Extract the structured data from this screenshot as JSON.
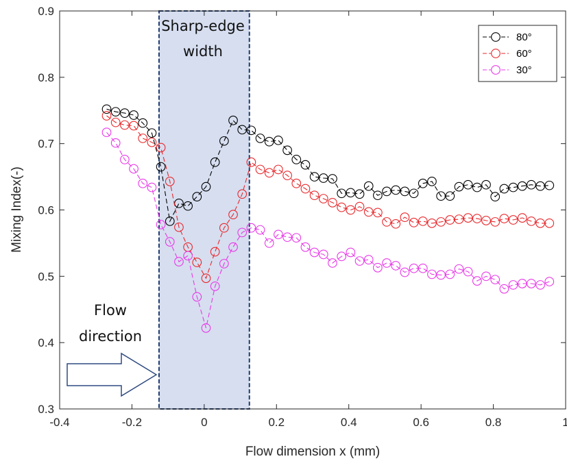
{
  "chart_data": {
    "type": "line",
    "title": "",
    "xlabel": "Flow dimension x (mm)",
    "ylabel": "Mixing Index(-)",
    "xlim": [
      -0.4,
      1
    ],
    "ylim": [
      0.3,
      0.9
    ],
    "xticks": [
      "-0.4",
      "-0.2",
      "0",
      "0.2",
      "0.4",
      "0.6",
      "0.8",
      "1"
    ],
    "yticks": [
      "0.3",
      "0.4",
      "0.5",
      "0.6",
      "0.7",
      "0.8",
      "0.9"
    ],
    "grid": false,
    "legend_position": "top-right",
    "series": [
      {
        "name": "80°",
        "color": "#000000",
        "marker": "circle",
        "line_style": "dashed",
        "x": [
          -0.27,
          -0.245,
          -0.22,
          -0.195,
          -0.17,
          -0.145,
          -0.12,
          -0.095,
          -0.07,
          -0.045,
          -0.02,
          0.005,
          0.03,
          0.055,
          0.08,
          0.105,
          0.13,
          0.155,
          0.18,
          0.205,
          0.23,
          0.255,
          0.28,
          0.305,
          0.33,
          0.355,
          0.38,
          0.405,
          0.43,
          0.455,
          0.48,
          0.505,
          0.53,
          0.555,
          0.58,
          0.605,
          0.63,
          0.655,
          0.68,
          0.705,
          0.73,
          0.755,
          0.78,
          0.805,
          0.83,
          0.855,
          0.88,
          0.905,
          0.93,
          0.955
        ],
        "y": [
          0.752,
          0.748,
          0.746,
          0.743,
          0.731,
          0.716,
          0.665,
          0.583,
          0.61,
          0.606,
          0.62,
          0.635,
          0.672,
          0.704,
          0.735,
          0.721,
          0.72,
          0.708,
          0.703,
          0.705,
          0.69,
          0.676,
          0.668,
          0.65,
          0.648,
          0.647,
          0.625,
          0.626,
          0.624,
          0.636,
          0.622,
          0.628,
          0.63,
          0.628,
          0.625,
          0.64,
          0.643,
          0.621,
          0.621,
          0.635,
          0.638,
          0.634,
          0.638,
          0.62,
          0.632,
          0.634,
          0.636,
          0.638,
          0.636,
          0.637
        ]
      },
      {
        "name": "60°",
        "color": "#e8272b",
        "marker": "circle",
        "line_style": "dashed",
        "x": [
          -0.27,
          -0.245,
          -0.22,
          -0.195,
          -0.17,
          -0.145,
          -0.12,
          -0.095,
          -0.07,
          -0.045,
          -0.02,
          0.005,
          0.03,
          0.055,
          0.08,
          0.105,
          0.13,
          0.155,
          0.18,
          0.205,
          0.23,
          0.255,
          0.28,
          0.305,
          0.33,
          0.355,
          0.38,
          0.405,
          0.43,
          0.455,
          0.48,
          0.505,
          0.53,
          0.555,
          0.58,
          0.605,
          0.63,
          0.655,
          0.68,
          0.705,
          0.73,
          0.755,
          0.78,
          0.805,
          0.83,
          0.855,
          0.88,
          0.905,
          0.93,
          0.955
        ],
        "y": [
          0.742,
          0.732,
          0.728,
          0.727,
          0.708,
          0.702,
          0.694,
          0.643,
          0.574,
          0.544,
          0.521,
          0.497,
          0.537,
          0.573,
          0.593,
          0.624,
          0.672,
          0.661,
          0.656,
          0.661,
          0.652,
          0.64,
          0.632,
          0.622,
          0.617,
          0.611,
          0.604,
          0.6,
          0.605,
          0.597,
          0.596,
          0.582,
          0.579,
          0.589,
          0.581,
          0.583,
          0.58,
          0.582,
          0.585,
          0.586,
          0.588,
          0.587,
          0.584,
          0.582,
          0.587,
          0.585,
          0.588,
          0.583,
          0.58,
          0.58
        ]
      },
      {
        "name": "30°",
        "color": "#e838e8",
        "marker": "circle",
        "line_style": "dashed",
        "x": [
          -0.27,
          -0.245,
          -0.22,
          -0.195,
          -0.17,
          -0.145,
          -0.12,
          -0.095,
          -0.07,
          -0.045,
          -0.02,
          0.005,
          0.03,
          0.055,
          0.08,
          0.105,
          0.13,
          0.155,
          0.18,
          0.205,
          0.23,
          0.255,
          0.28,
          0.305,
          0.33,
          0.355,
          0.38,
          0.405,
          0.43,
          0.455,
          0.48,
          0.505,
          0.53,
          0.555,
          0.58,
          0.605,
          0.63,
          0.655,
          0.68,
          0.705,
          0.73,
          0.755,
          0.78,
          0.805,
          0.83,
          0.855,
          0.88,
          0.905,
          0.93,
          0.955
        ],
        "y": [
          0.717,
          0.701,
          0.676,
          0.662,
          0.64,
          0.634,
          0.578,
          0.552,
          0.522,
          0.531,
          0.469,
          0.422,
          0.485,
          0.519,
          0.544,
          0.566,
          0.573,
          0.57,
          0.55,
          0.563,
          0.559,
          0.558,
          0.544,
          0.536,
          0.533,
          0.52,
          0.53,
          0.536,
          0.523,
          0.525,
          0.513,
          0.52,
          0.516,
          0.506,
          0.512,
          0.512,
          0.503,
          0.502,
          0.503,
          0.511,
          0.507,
          0.493,
          0.5,
          0.495,
          0.481,
          0.487,
          0.489,
          0.489,
          0.487,
          0.492
        ]
      }
    ],
    "annotations": {
      "region_label_line1": "Sharp-edge",
      "region_label_line2": "width",
      "region_x": [
        -0.125,
        0.125
      ],
      "region_fill": "#d6def0",
      "region_border": "#1f3a6e",
      "arrow_label_line1": "Flow",
      "arrow_label_line2": "direction",
      "arrow_color": "#2f4a80"
    }
  }
}
